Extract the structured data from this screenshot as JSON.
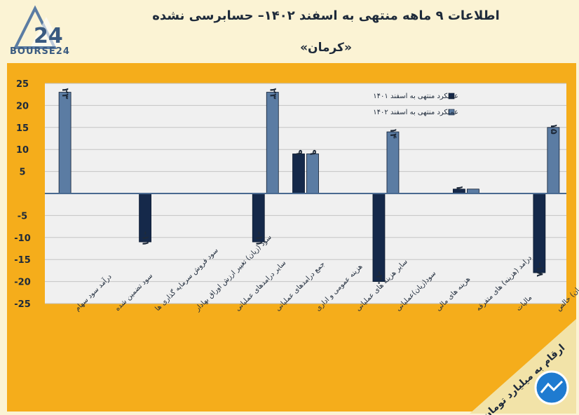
{
  "header": {
    "title": "اطلاعات ۹ ماهه منتهی به اسفند ۱۴۰۲– حسابرسی نشده",
    "subtitle": "«کرمان»",
    "logo_text": "BOURSE24"
  },
  "footer_note": "ارقام به میلیارد تومان",
  "colors": {
    "series_1401": "#15294a",
    "series_1402": "#5b7ca3",
    "panel": "#f5ad1b",
    "plot_area": "#f0f0f0"
  },
  "chart_data": {
    "type": "bar",
    "title": "اطلاعات ۹ ماهه منتهی به اسفند ۱۴۰۲– حسابرسی نشده",
    "ylim": [
      -25,
      25
    ],
    "yticks": [
      25,
      20,
      15,
      10,
      5,
      -5,
      -10,
      -15,
      -20,
      -25
    ],
    "ytick_labels": [
      "25",
      "20",
      "15",
      "10",
      "5",
      "-5",
      "-10",
      "-15",
      "-20",
      "-25"
    ],
    "grid": true,
    "legend_position": "top-right",
    "categories": [
      "درآمد سود سهام",
      "سود تضمین شده",
      "سود فروش سرمایه گذاری ها",
      "سود (زیان) تغییر ارزش اوراق بهادار",
      "سایر درامدهای عملیاتی",
      "جمع درامدهای عملیاتی",
      "هزینه عمومی و اداری",
      "سایر هزینه های عملیاتی",
      "سود(زیان)عملیاتی",
      "هزینه های مالی",
      "درامد (هزینه) های متفرقه",
      "مالیات",
      "سود(زیان) خالص"
    ],
    "series": [
      {
        "name": "عملکرد منتهی به اسفند ۱۴۰۱",
        "values": [
          null,
          null,
          -11,
          null,
          null,
          -11,
          9,
          null,
          -20,
          null,
          1,
          null,
          -18
        ],
        "labels": [
          "",
          "",
          "-۱۱",
          "",
          "",
          "-۱۱",
          "۹",
          "",
          "-۲۰",
          "",
          "۱",
          "",
          "-۱۸"
        ]
      },
      {
        "name": "عملکرد منتهی به اسفند ۱۴۰۲",
        "values": [
          23,
          null,
          null,
          null,
          null,
          23,
          9,
          null,
          14,
          null,
          1,
          null,
          15
        ],
        "labels": [
          "۲۳",
          "",
          "",
          "",
          "",
          "۲۳",
          "۹",
          "",
          "۱۴",
          "",
          "",
          "",
          "۱۵"
        ]
      }
    ]
  }
}
